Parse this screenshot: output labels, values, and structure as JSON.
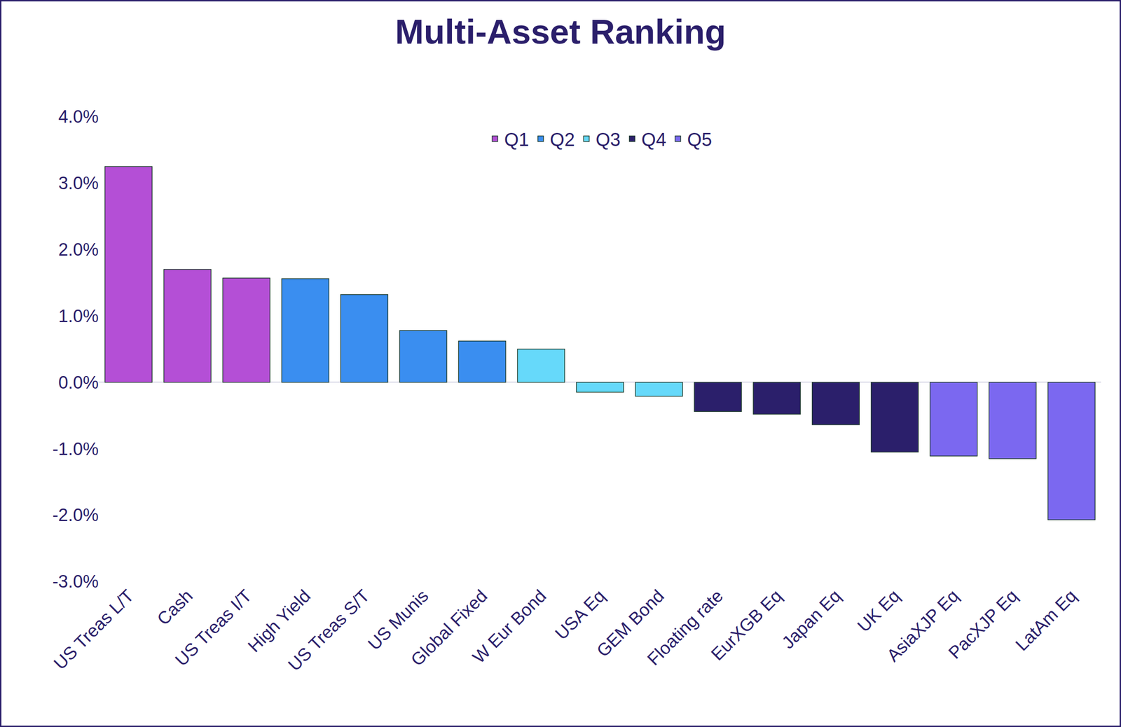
{
  "chart_data": {
    "type": "bar",
    "title": "Multi-Asset Ranking",
    "categories": [
      "US Treas L/T",
      "Cash",
      "US Treas I/T",
      "High Yield",
      "US Treas S/T",
      "US Munis",
      "Global Fixed",
      "W Eur Bond",
      "USA Eq",
      "GEM Bond",
      "Floating rate",
      "EurXGB Eq",
      "Japan Eq",
      "UK Eq",
      "AsiaXJP Eq",
      "PacXJP Eq",
      "LatAm Eq"
    ],
    "series": [
      {
        "name": "Q1",
        "color": "#b44fd6",
        "values": [
          3.25,
          1.7,
          1.57,
          null,
          null,
          null,
          null,
          null,
          null,
          null,
          null,
          null,
          null,
          null,
          null,
          null,
          null
        ]
      },
      {
        "name": "Q2",
        "color": "#3a8ef0",
        "values": [
          null,
          null,
          null,
          1.56,
          1.32,
          0.78,
          0.62,
          null,
          null,
          null,
          null,
          null,
          null,
          null,
          null,
          null,
          null
        ]
      },
      {
        "name": "Q3",
        "color": "#66d9fa",
        "values": [
          null,
          null,
          null,
          null,
          null,
          null,
          null,
          0.5,
          -0.15,
          -0.21,
          null,
          null,
          null,
          null,
          null,
          null,
          null
        ]
      },
      {
        "name": "Q4",
        "color": "#2b1f6b",
        "values": [
          null,
          null,
          null,
          null,
          null,
          null,
          null,
          null,
          null,
          null,
          -0.44,
          -0.48,
          -0.64,
          -1.05,
          null,
          null,
          null
        ]
      },
      {
        "name": "Q5",
        "color": "#7b68f0",
        "values": [
          null,
          null,
          null,
          null,
          null,
          null,
          null,
          null,
          null,
          null,
          null,
          null,
          null,
          null,
          -1.11,
          -1.15,
          -2.07
        ]
      }
    ],
    "ylim": [
      -3,
      4
    ],
    "yticks": [
      {
        "value": -3,
        "label": "-3.0%"
      },
      {
        "value": -2,
        "label": "-2.0%"
      },
      {
        "value": -1,
        "label": "-1.0%"
      },
      {
        "value": 0,
        "label": "0.0%"
      },
      {
        "value": 1,
        "label": "1.0%"
      },
      {
        "value": 2,
        "label": "2.0%"
      },
      {
        "value": 3,
        "label": "3.0%"
      },
      {
        "value": 4,
        "label": "4.0%"
      }
    ],
    "grid": false,
    "legend": "top"
  }
}
